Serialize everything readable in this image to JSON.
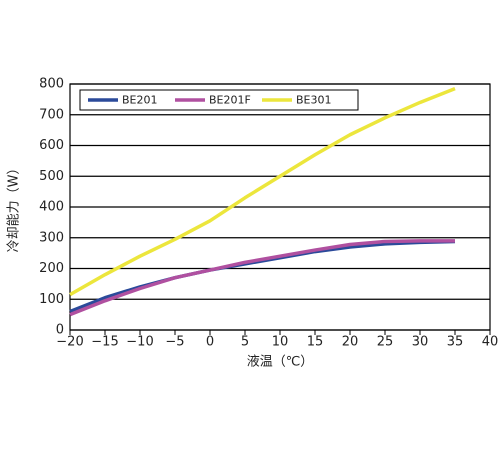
{
  "chart_data": {
    "type": "line",
    "xlabel": "液温（℃）",
    "ylabel": "冷却能力（W）",
    "x": [
      -20,
      -15,
      -10,
      -5,
      0,
      5,
      10,
      15,
      20,
      25,
      30,
      35
    ],
    "series": [
      {
        "name": "BE201",
        "color": "#2b4a9a",
        "values": [
          60,
          105,
          140,
          170,
          195,
          215,
          235,
          255,
          270,
          280,
          285,
          288
        ]
      },
      {
        "name": "BE201F",
        "color": "#b050a0",
        "values": [
          50,
          95,
          135,
          170,
          195,
          220,
          240,
          260,
          278,
          288,
          290,
          290
        ]
      },
      {
        "name": "BE301",
        "color": "#ece63c",
        "values": [
          115,
          180,
          240,
          295,
          355,
          430,
          500,
          570,
          635,
          690,
          740,
          785
        ]
      }
    ],
    "xlim": [
      -20,
      40
    ],
    "xticks": [
      {
        "value": -20,
        "label": "−20"
      },
      {
        "value": -15,
        "label": "−15"
      },
      {
        "value": -10,
        "label": "−10"
      },
      {
        "value": -5,
        "label": "−5"
      },
      0,
      5,
      10,
      15,
      20,
      25,
      30,
      35,
      40
    ],
    "ylim": [
      0,
      800
    ],
    "yticks": [
      0,
      100,
      200,
      300,
      400,
      500,
      600,
      700,
      800
    ],
    "grid": true,
    "legend": "upper left"
  }
}
